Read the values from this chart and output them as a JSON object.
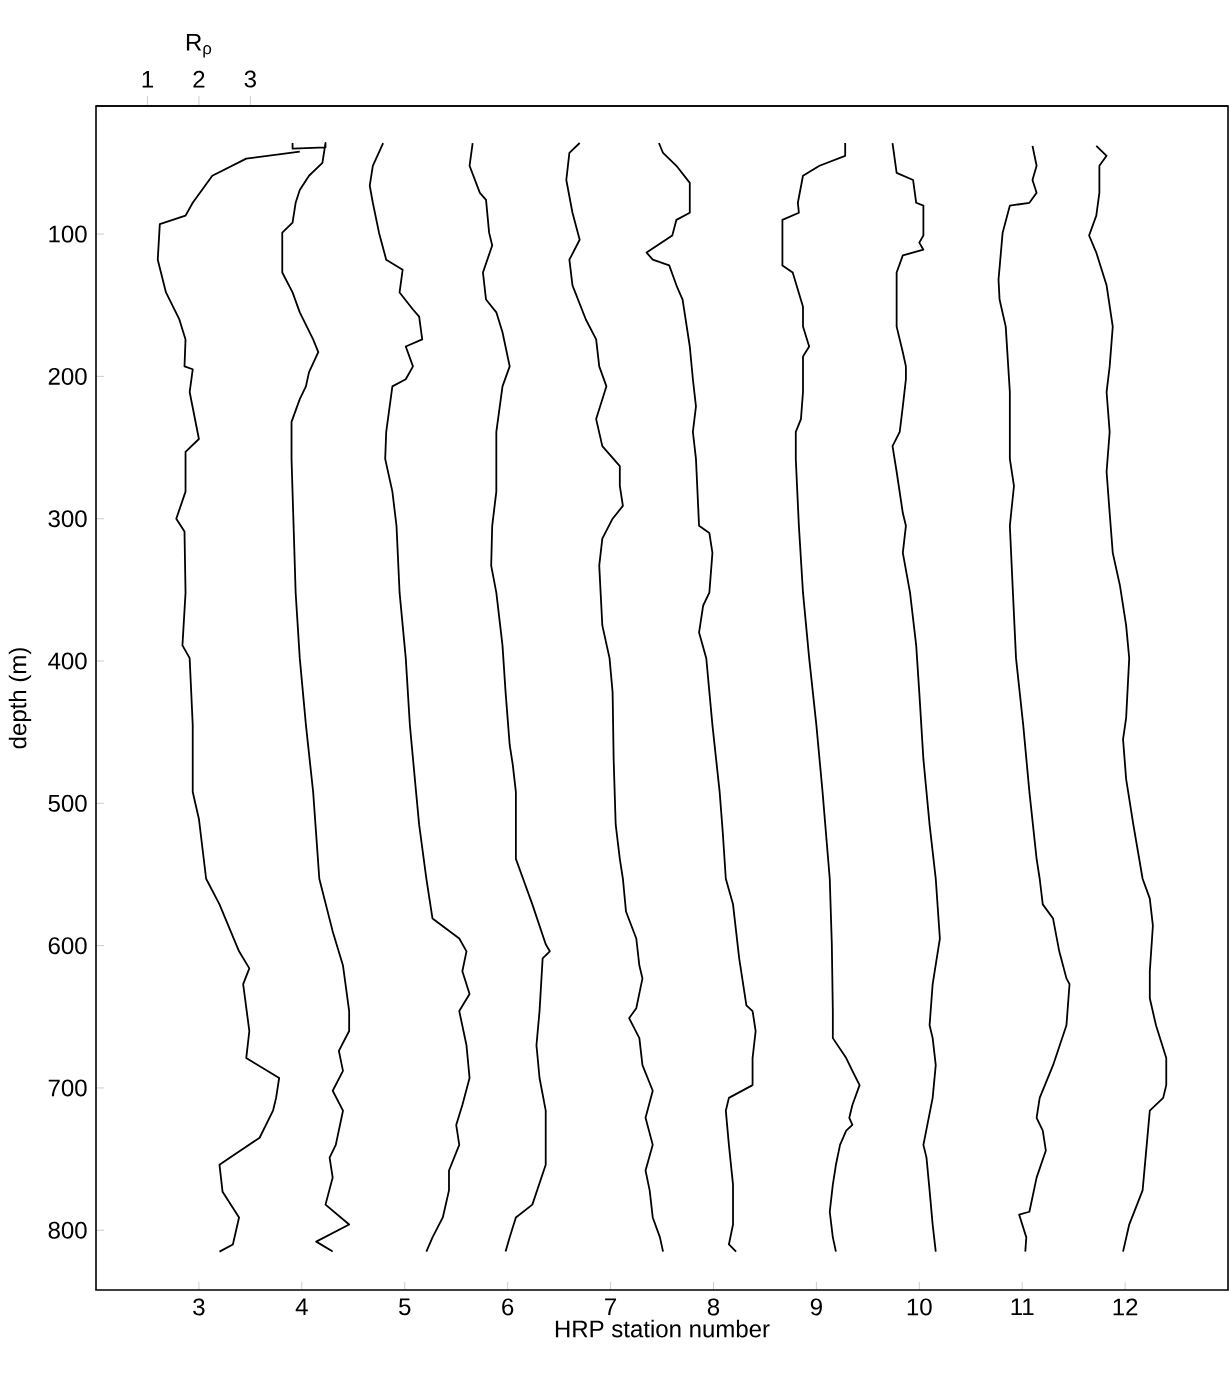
{
  "chart_data": {
    "type": "line",
    "xlabel": "HRP station number",
    "ylabel": "depth (m)",
    "x2label": "R$_{ρ}$",
    "xlim": [
      2,
      13
    ],
    "xticks": [
      3,
      4,
      5,
      6,
      7,
      8,
      9,
      10,
      11,
      12
    ],
    "x2lim": [
      0,
      22
    ],
    "x2ticks": [
      1,
      2,
      3
    ],
    "ylim": [
      842,
      10
    ],
    "yticks": [
      100,
      200,
      300,
      400,
      500,
      600,
      700,
      800
    ],
    "series": [
      {
        "color": "#000000",
        "x": [
          3.98,
          3.46,
          3.13,
          2.94,
          2.87,
          2.62,
          2.6,
          2.68,
          2.81,
          2.87,
          2.86,
          2.94,
          2.91,
          3.0,
          2.87,
          2.87,
          2.78,
          2.86,
          2.87,
          2.84,
          2.91,
          2.94,
          2.94,
          3.0,
          3.07,
          3.2,
          3.39,
          3.49,
          3.43,
          3.49,
          3.46,
          3.78,
          3.75,
          3.72,
          3.59,
          3.3,
          3.2,
          3.23,
          3.39,
          3.33,
          3.2
        ],
        "values": [
          42,
          47,
          59,
          78,
          87,
          93,
          118,
          141,
          160,
          174,
          193,
          195,
          211,
          244,
          253,
          281,
          300,
          309,
          352,
          389,
          398,
          445,
          492,
          511,
          553,
          571,
          604,
          616,
          627,
          660,
          679,
          693,
          707,
          716,
          735,
          749,
          754,
          773,
          791,
          810,
          815
        ]
      },
      {
        "color": "#000000",
        "x": [
          3.91,
          3.91,
          4.23,
          4.23,
          4.2,
          4.07,
          3.98,
          3.94,
          3.91,
          3.81,
          3.81,
          3.91,
          3.98,
          4.11,
          4.16,
          4.07,
          4.04,
          3.98,
          3.9,
          3.9,
          3.92,
          3.94,
          3.98,
          4.04,
          4.11,
          4.17,
          4.3,
          4.4,
          4.46,
          4.46,
          4.36,
          4.4,
          4.3,
          4.4,
          4.33,
          4.27,
          4.3,
          4.23,
          4.46,
          4.14,
          4.3
        ],
        "values": [
          36,
          40,
          39,
          36,
          50,
          59,
          69,
          78,
          92,
          99,
          127,
          141,
          155,
          174,
          183,
          197,
          207,
          216,
          232,
          258,
          305,
          352,
          398,
          445,
          492,
          553,
          590,
          614,
          646,
          660,
          674,
          688,
          702,
          716,
          740,
          749,
          763,
          782,
          796,
          808,
          815
        ]
      },
      {
        "color": "#000000",
        "x": [
          4.79,
          4.69,
          4.66,
          4.69,
          4.75,
          4.82,
          4.98,
          4.95,
          5.08,
          5.14,
          5.17,
          5.01,
          5.08,
          5.01,
          4.88,
          4.82,
          4.81,
          4.88,
          4.92,
          4.95,
          5.01,
          5.05,
          5.11,
          5.14,
          5.21,
          5.27,
          5.53,
          5.6,
          5.56,
          5.63,
          5.53,
          5.6,
          5.63,
          5.56,
          5.5,
          5.53,
          5.43,
          5.43,
          5.37,
          5.27,
          5.21
        ],
        "values": [
          36,
          52,
          66,
          78,
          99,
          118,
          125,
          141,
          153,
          158,
          174,
          179,
          193,
          202,
          207,
          239,
          258,
          281,
          305,
          352,
          398,
          445,
          492,
          515,
          553,
          581,
          595,
          604,
          618,
          634,
          646,
          670,
          693,
          712,
          726,
          740,
          758,
          772,
          791,
          805,
          815
        ]
      },
      {
        "color": "#000000",
        "x": [
          5.66,
          5.63,
          5.73,
          5.79,
          5.82,
          5.85,
          5.76,
          5.79,
          5.89,
          5.95,
          6.02,
          5.95,
          5.89,
          5.89,
          5.85,
          5.84,
          5.89,
          5.95,
          5.98,
          6.02,
          6.05,
          6.08,
          6.08,
          6.15,
          6.24,
          6.37,
          6.41,
          6.34,
          6.31,
          6.28,
          6.31,
          6.37,
          6.37,
          6.24,
          6.08,
          6.02,
          5.98
        ],
        "values": [
          36,
          52,
          71,
          76,
          99,
          108,
          127,
          146,
          155,
          169,
          193,
          207,
          239,
          281,
          305,
          333,
          352,
          389,
          422,
          459,
          473,
          492,
          539,
          553,
          571,
          599,
          604,
          609,
          646,
          670,
          693,
          716,
          754,
          782,
          791,
          805,
          815
        ]
      },
      {
        "color": "#000000",
        "x": [
          6.7,
          6.6,
          6.57,
          6.63,
          6.7,
          6.6,
          6.63,
          6.76,
          6.86,
          6.89,
          6.96,
          6.86,
          6.92,
          7.09,
          7.09,
          7.12,
          7.02,
          6.92,
          6.89,
          6.92,
          6.99,
          7.02,
          7.03,
          7.05,
          7.09,
          7.12,
          7.15,
          7.25,
          7.28,
          7.31,
          7.25,
          7.18,
          7.28,
          7.31,
          7.41,
          7.34,
          7.41,
          7.34,
          7.38,
          7.41,
          7.48,
          7.51
        ],
        "values": [
          36,
          43,
          62,
          85,
          104,
          118,
          136,
          160,
          174,
          193,
          207,
          230,
          249,
          263,
          277,
          291,
          300,
          314,
          333,
          375,
          398,
          422,
          469,
          515,
          539,
          553,
          576,
          595,
          614,
          623,
          644,
          651,
          665,
          684,
          702,
          721,
          740,
          758,
          772,
          791,
          805,
          815
        ]
      },
      {
        "color": "#000000",
        "x": [
          7.47,
          7.51,
          7.64,
          7.77,
          7.77,
          7.64,
          7.6,
          7.35,
          7.41,
          7.57,
          7.64,
          7.7,
          7.77,
          7.8,
          7.83,
          7.8,
          7.83,
          7.86,
          7.96,
          7.99,
          7.96,
          7.9,
          7.86,
          7.93,
          7.99,
          8.06,
          8.09,
          8.12,
          8.19,
          8.25,
          8.32,
          8.38,
          8.41,
          8.38,
          8.38,
          8.15,
          8.12,
          8.15,
          8.19,
          8.19,
          8.15,
          8.22
        ],
        "values": [
          36,
          43,
          52,
          64,
          85,
          90,
          101,
          113,
          118,
          122,
          136,
          146,
          179,
          202,
          221,
          239,
          258,
          305,
          310,
          324,
          352,
          361,
          380,
          398,
          445,
          492,
          520,
          553,
          571,
          609,
          642,
          646,
          660,
          679,
          698,
          707,
          716,
          740,
          768,
          796,
          810,
          815
        ]
      },
      {
        "color": "#000000",
        "x": [
          9.28,
          9.28,
          9.03,
          8.87,
          8.82,
          8.83,
          8.67,
          8.67,
          8.77,
          8.87,
          8.87,
          8.93,
          8.87,
          8.87,
          8.85,
          8.8,
          8.8,
          8.83,
          8.87,
          8.93,
          9.0,
          9.06,
          9.13,
          9.15,
          9.16,
          9.16,
          9.29,
          9.35,
          9.42,
          9.35,
          9.32,
          9.35,
          9.29,
          9.23,
          9.19,
          9.16,
          9.13,
          9.16,
          9.19
        ],
        "values": [
          36,
          45,
          52,
          59,
          78,
          85,
          90,
          122,
          127,
          151,
          165,
          179,
          186,
          211,
          230,
          239,
          258,
          305,
          352,
          398,
          445,
          492,
          553,
          599,
          646,
          665,
          679,
          688,
          698,
          712,
          721,
          726,
          730,
          740,
          754,
          768,
          787,
          805,
          815
        ]
      },
      {
        "color": "#000000",
        "x": [
          9.74,
          9.78,
          9.94,
          9.97,
          10.04,
          10.04,
          10.0,
          10.04,
          9.84,
          9.78,
          9.78,
          9.84,
          9.87,
          9.87,
          9.84,
          9.81,
          9.74,
          9.78,
          9.84,
          9.87,
          9.84,
          9.91,
          9.97,
          10.0,
          10.04,
          10.1,
          10.16,
          10.2,
          10.13,
          10.1,
          10.13,
          10.16,
          10.13,
          10.04,
          10.07,
          10.1,
          10.13,
          10.16
        ],
        "values": [
          36,
          57,
          62,
          78,
          80,
          101,
          106,
          111,
          115,
          127,
          165,
          183,
          193,
          202,
          221,
          239,
          249,
          267,
          296,
          305,
          324,
          352,
          389,
          422,
          469,
          515,
          553,
          595,
          627,
          656,
          665,
          684,
          707,
          740,
          749,
          772,
          796,
          815
        ]
      },
      {
        "color": "#000000",
        "x": [
          11.1,
          11.14,
          11.1,
          11.14,
          11.07,
          10.88,
          10.81,
          10.77,
          10.78,
          10.84,
          10.88,
          10.88,
          10.92,
          10.88,
          10.91,
          10.94,
          11.01,
          11.07,
          11.14,
          11.17,
          11.2,
          11.3,
          11.36,
          11.43,
          11.46,
          11.43,
          11.3,
          11.17,
          11.14,
          11.2,
          11.23,
          11.14,
          11.07,
          10.97,
          11.04,
          11.03
        ],
        "values": [
          38,
          52,
          62,
          71,
          78,
          80,
          99,
          132,
          146,
          165,
          211,
          258,
          277,
          305,
          352,
          398,
          445,
          492,
          539,
          553,
          571,
          581,
          604,
          623,
          627,
          656,
          684,
          707,
          721,
          730,
          744,
          763,
          787,
          789,
          805,
          815
        ]
      },
      {
        "color": "#000000",
        "x": [
          11.72,
          11.82,
          11.75,
          11.75,
          11.72,
          11.65,
          11.72,
          11.82,
          11.88,
          11.85,
          11.82,
          11.85,
          11.82,
          11.85,
          11.88,
          11.95,
          12.01,
          12.04,
          12.01,
          11.98,
          12.01,
          12.08,
          12.17,
          12.24,
          12.27,
          12.24,
          12.24,
          12.3,
          12.4,
          12.4,
          12.37,
          12.24,
          12.21,
          12.17,
          12.04,
          11.98
        ],
        "values": [
          38,
          45,
          52,
          71,
          87,
          101,
          113,
          136,
          165,
          193,
          211,
          239,
          267,
          296,
          324,
          347,
          375,
          398,
          440,
          455,
          483,
          515,
          553,
          567,
          586,
          618,
          637,
          656,
          679,
          698,
          707,
          716,
          740,
          772,
          796,
          815
        ]
      }
    ]
  }
}
